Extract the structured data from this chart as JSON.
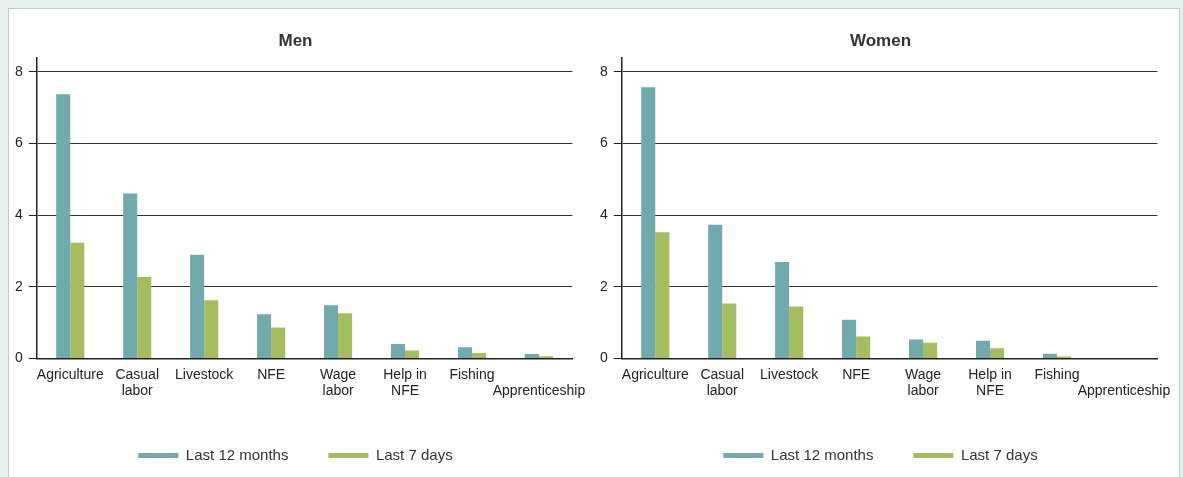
{
  "chart_data": [
    {
      "type": "bar",
      "title": "Men",
      "categories": [
        "Agriculture",
        "Casual labor",
        "Livestock",
        "NFE",
        "Wage labor",
        "Help in NFE",
        "Fishing",
        "Apprenticeship"
      ],
      "series": [
        {
          "name": "Last 12 months",
          "color": "#70aaad",
          "values": [
            7.37,
            4.6,
            2.89,
            1.23,
            1.48,
            0.4,
            0.31,
            0.12
          ]
        },
        {
          "name": "Last 7 days",
          "color": "#a5bd5f",
          "values": [
            3.23,
            2.27,
            1.62,
            0.86,
            1.26,
            0.22,
            0.15,
            0.06
          ]
        }
      ],
      "ylim": [
        0,
        8.4
      ],
      "yticks": [
        0,
        2,
        4,
        6,
        8
      ],
      "grid": "y",
      "legend": "bottom"
    },
    {
      "type": "bar",
      "title": "Women",
      "categories": [
        "Agriculture",
        "Casual labor",
        "Livestock",
        "NFE",
        "Wage labor",
        "Help in NFE",
        "Fishing",
        "Apprenticeship"
      ],
      "series": [
        {
          "name": "Last 12 months",
          "color": "#70aaad",
          "values": [
            7.57,
            3.73,
            2.69,
            1.08,
            0.53,
            0.49,
            0.13,
            null
          ]
        },
        {
          "name": "Last 7 days",
          "color": "#a5bd5f",
          "values": [
            3.52,
            1.53,
            1.45,
            0.61,
            0.44,
            0.28,
            0.05,
            null
          ]
        }
      ],
      "ylim": [
        0,
        8.4
      ],
      "yticks": [
        0,
        2,
        4,
        6,
        8
      ],
      "grid": "y",
      "legend": "bottom"
    }
  ]
}
